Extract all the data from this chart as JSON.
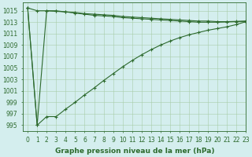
{
  "xlabel": "Graphe pression niveau de la mer (hPa)",
  "hours": [
    0,
    1,
    2,
    3,
    4,
    5,
    6,
    7,
    8,
    9,
    10,
    11,
    12,
    13,
    14,
    15,
    16,
    17,
    18,
    19,
    20,
    21,
    22,
    23
  ],
  "line_top": [
    1015.5,
    1015.0,
    1015.0,
    1014.9,
    1014.8,
    1014.7,
    1014.5,
    1014.4,
    1014.3,
    1014.2,
    1014.0,
    1013.9,
    1013.8,
    1013.7,
    1013.6,
    1013.5,
    1013.4,
    1013.3,
    1013.2,
    1013.2,
    1013.1,
    1013.1,
    1013.15,
    1013.2
  ],
  "line_mid": [
    1015.5,
    995.0,
    1015.0,
    1015.0,
    1014.8,
    1014.6,
    1014.4,
    1014.2,
    1014.1,
    1014.0,
    1013.8,
    1013.7,
    1013.6,
    1013.5,
    1013.4,
    1013.3,
    1013.2,
    1013.1,
    1013.0,
    1013.0,
    1013.0,
    1013.05,
    1013.1,
    1013.15
  ],
  "line_bot": [
    1015.5,
    995.0,
    996.5,
    996.5,
    997.8,
    999.0,
    1000.3,
    1001.5,
    1002.8,
    1004.0,
    1005.2,
    1006.3,
    1007.3,
    1008.2,
    1009.0,
    1009.7,
    1010.3,
    1010.8,
    1011.2,
    1011.6,
    1011.9,
    1012.2,
    1012.6,
    1013.1
  ],
  "line_color": "#2d6a2d",
  "bg_color": "#d4eeee",
  "grid_color": "#a8cca8",
  "ylim": [
    994,
    1016.5
  ],
  "yticks": [
    995,
    997,
    999,
    1001,
    1003,
    1005,
    1007,
    1009,
    1011,
    1013,
    1015
  ],
  "xlim": [
    -0.5,
    23
  ],
  "label_fontsize": 6.5,
  "tick_fontsize": 5.5
}
